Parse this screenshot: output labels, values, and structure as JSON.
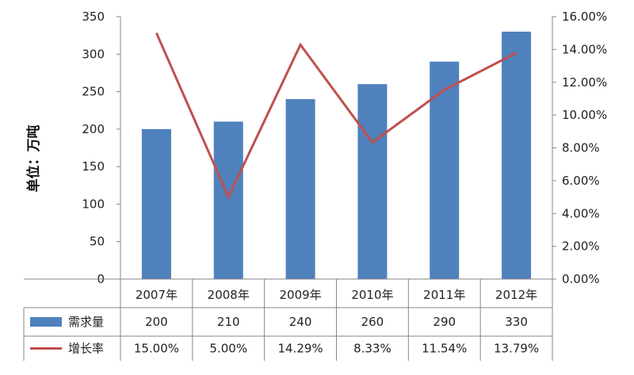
{
  "chart_data": {
    "type": "bar",
    "categories": [
      "2007年",
      "2008年",
      "2009年",
      "2010年",
      "2011年",
      "2012年"
    ],
    "ylabel": "单位：万吨",
    "ylim": [
      0,
      350
    ],
    "yticks": [
      "0",
      "50",
      "100",
      "150",
      "200",
      "250",
      "300",
      "350"
    ],
    "y2lim": [
      0,
      0.16
    ],
    "y2ticks": [
      "0.00%",
      "2.00%",
      "4.00%",
      "6.00%",
      "8.00%",
      "10.00%",
      "12.00%",
      "14.00%",
      "16.00%"
    ],
    "grid": false,
    "legend": "table-below",
    "series": [
      {
        "name": "需求量",
        "type": "bar",
        "axis": "left",
        "color": "#4F81BD",
        "values": [
          200,
          210,
          240,
          260,
          290,
          330
        ],
        "labels": [
          "200",
          "210",
          "240",
          "260",
          "290",
          "330"
        ]
      },
      {
        "name": "增长率",
        "type": "line",
        "axis": "right",
        "color": "#C0504D",
        "values": [
          0.15,
          0.05,
          0.1429,
          0.0833,
          0.1154,
          0.1379
        ],
        "labels": [
          "15.00%",
          "5.00%",
          "14.29%",
          "8.33%",
          "11.54%",
          "13.79%"
        ]
      }
    ]
  }
}
